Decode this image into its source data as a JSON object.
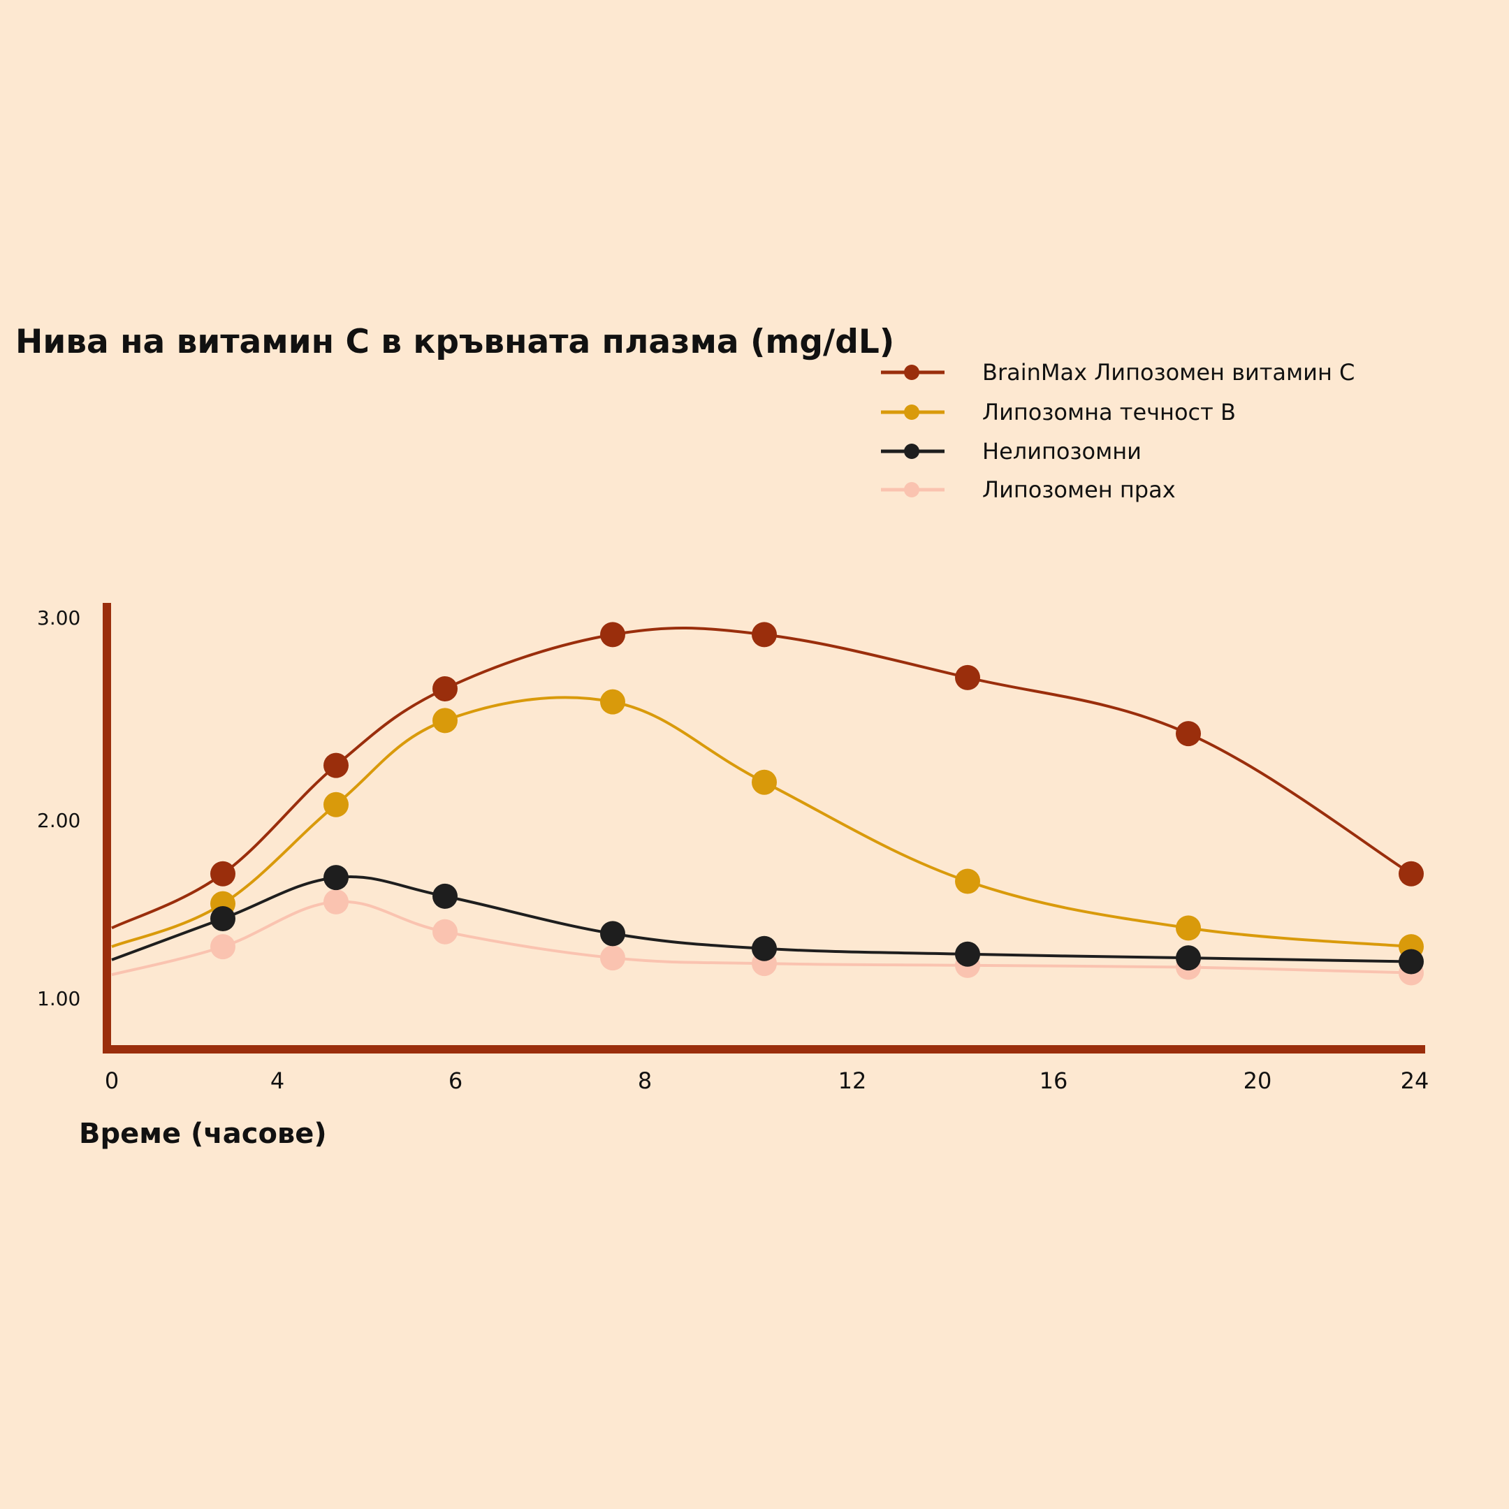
{
  "colors": {
    "background": "#fde8d1",
    "axis": "#9a2e0c"
  },
  "chart_data": {
    "type": "line",
    "title": "Нива на витамин С в кръвната плазма (mg/dL)",
    "xlabel": "Време (часове)",
    "ylabel": "",
    "x_tick_labels": [
      "0",
      "4",
      "6",
      "8",
      "12",
      "16",
      "20",
      "24"
    ],
    "y_tick_labels": [
      "3.00",
      "2.00",
      "1.00"
    ],
    "x": [
      0,
      4,
      6,
      8,
      10,
      12,
      16,
      20,
      24
    ],
    "ylim": [
      0.75,
      3.08
    ],
    "legend_position": "top-right",
    "grid": false,
    "series": [
      {
        "name": "BrainMax Липозомен витамин С",
        "color": "#9a2e0c",
        "values": [
          1.38,
          1.67,
          2.25,
          2.66,
          2.95,
          2.95,
          2.72,
          2.42,
          1.67
        ]
      },
      {
        "name": "Липозомна течност B",
        "color": "#d99a0b",
        "values": [
          1.28,
          1.51,
          2.04,
          2.49,
          2.59,
          2.16,
          1.63,
          1.38,
          1.28
        ]
      },
      {
        "name": "Нелипозомни",
        "color": "#1e1e1e",
        "values": [
          1.21,
          1.43,
          1.65,
          1.55,
          1.35,
          1.27,
          1.24,
          1.22,
          1.2
        ]
      },
      {
        "name": "Липозомен прах",
        "color": "#fac3b0",
        "values": [
          1.13,
          1.28,
          1.52,
          1.36,
          1.22,
          1.19,
          1.18,
          1.17,
          1.14
        ]
      }
    ]
  }
}
